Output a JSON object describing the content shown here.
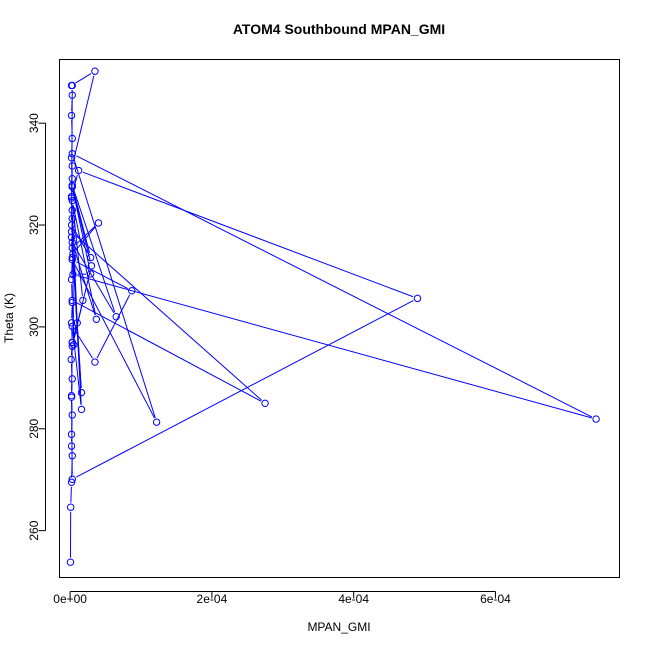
{
  "chart_data": {
    "type": "line",
    "title": "ATOM4 Southbound MPAN_GMI",
    "xlabel": "MPAN_GMI",
    "ylabel": "Theta (K)",
    "xlim": [
      -1.5e-05,
      0.000775
    ],
    "ylim": [
      250.8,
      352.5
    ],
    "xticks": [
      0,
      0.0002,
      0.0004,
      0.0006
    ],
    "xtick_labels": [
      "0e+00",
      "2e-04",
      "4e-04",
      "6e-04"
    ],
    "yticks": [
      260,
      280,
      300,
      320,
      340
    ],
    "ytick_labels": [
      "260",
      "280",
      "300",
      "320",
      "340"
    ],
    "series": [
      {
        "color": "#0000ff",
        "marker": "open-circle",
        "points": [
          [
            5e-07,
            253.8
          ],
          [
            8e-07,
            264.6
          ],
          [
            2e-06,
            269.5
          ],
          [
            3e-06,
            274.7
          ],
          [
            2e-06,
            276.6
          ],
          [
            2e-06,
            278.9
          ],
          [
            3e-06,
            282.7
          ],
          [
            2e-06,
            286.2
          ],
          [
            3e-06,
            289.8
          ],
          [
            1.5e-06,
            293.6
          ],
          [
            3e-06,
            296.9
          ],
          [
            2e-06,
            300.8
          ],
          [
            3e-06,
            304.8
          ],
          [
            2e-06,
            309.3
          ],
          [
            3e-06,
            313.6
          ],
          [
            2e-06,
            317.6
          ],
          [
            3e-06,
            321.3
          ],
          [
            2e-06,
            325.3
          ],
          [
            3e-06,
            329.1
          ],
          [
            2e-06,
            333.2
          ],
          [
            3e-06,
            337.0
          ],
          [
            2e-06,
            341.5
          ],
          [
            3e-06,
            345.5
          ],
          [
            2e-06,
            347.4
          ],
          [
            3.5e-05,
            350.2
          ],
          [
            3e-06,
            331.6
          ],
          [
            2e-06,
            325.6
          ],
          [
            1.2e-05,
            330.7
          ],
          [
            0.00049,
            305.6
          ],
          [
            3e-06,
            270.1
          ],
          [
            2e-06,
            286.5
          ],
          [
            3e-06,
            297.0
          ],
          [
            1e-05,
            300.8
          ],
          [
            3e-06,
            322.9
          ],
          [
            5e-06,
            296.5
          ],
          [
            3e-06,
            305.2
          ],
          [
            0.000275,
            285.0
          ],
          [
            2e-06,
            318.7
          ],
          [
            1.6e-05,
            287.1
          ],
          [
            3e-06,
            315.5
          ],
          [
            4e-05,
            320.4
          ],
          [
            4e-06,
            314.4
          ],
          [
            1.6e-05,
            283.8
          ],
          [
            3e-06,
            300.1
          ],
          [
            3.5e-05,
            293.1
          ],
          [
            8.7e-05,
            307.1
          ],
          [
            3e-06,
            313.2
          ],
          [
            0.000122,
            281.3
          ],
          [
            3e-06,
            334.0
          ],
          [
            0.000742,
            281.9
          ],
          [
            4e-06,
            310.3
          ],
          [
            2.9e-05,
            310.4
          ],
          [
            3e-06,
            327.5
          ],
          [
            3e-05,
            312.0
          ],
          [
            3e-06,
            296.2
          ],
          [
            1.8e-05,
            305.2
          ],
          [
            3e-06,
            324.8
          ],
          [
            3.7e-05,
            301.5
          ],
          [
            3e-06,
            316.6
          ],
          [
            6.5e-05,
            302.0
          ],
          [
            3e-06,
            327.8
          ],
          [
            2.9e-05,
            313.6
          ],
          [
            2e-06,
            320.0
          ],
          [
            3e-06,
            347.4
          ]
        ]
      }
    ],
    "grid": false,
    "legend": "none"
  }
}
